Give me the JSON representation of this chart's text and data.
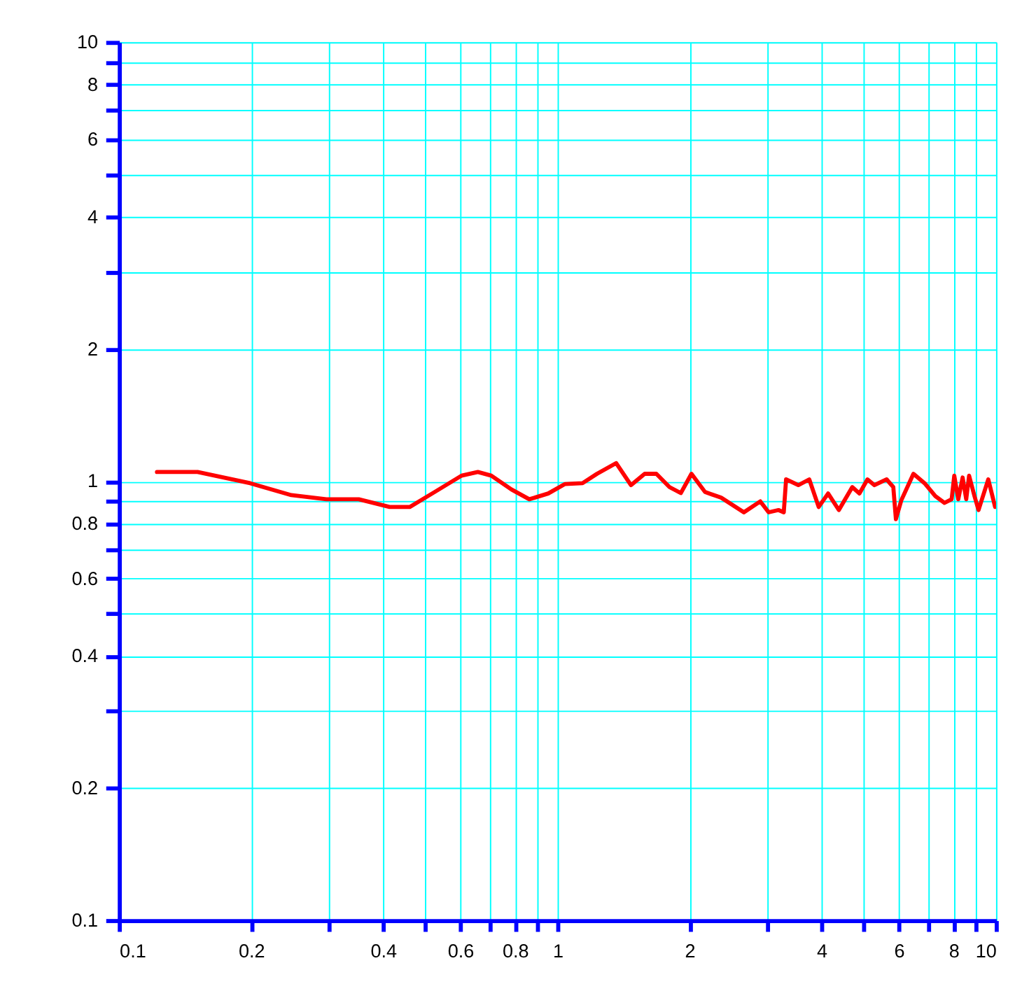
{
  "chart_data": {
    "type": "line",
    "log": "xy",
    "grid": true,
    "line_style": "solid",
    "marker": "none",
    "xlim": [
      0.1,
      10
    ],
    "ylim": [
      0.1,
      10
    ],
    "xticks": [
      0.1,
      0.2,
      {
        "value": 0.3,
        "label": null
      },
      0.4,
      {
        "value": 0.5,
        "label": null
      },
      0.6,
      {
        "value": 0.7,
        "label": null
      },
      0.8,
      {
        "value": 0.9,
        "label": null
      },
      1,
      2,
      {
        "value": 3,
        "label": null
      },
      4,
      {
        "value": 5,
        "label": null
      },
      6,
      {
        "value": 7,
        "label": null
      },
      8,
      {
        "value": 9,
        "label": null
      },
      10
    ],
    "yticks": [
      0.1,
      0.2,
      {
        "value": 0.3,
        "label": null
      },
      0.4,
      {
        "value": 0.5,
        "label": null
      },
      0.6,
      {
        "value": 0.7,
        "label": null
      },
      0.8,
      {
        "value": 0.9,
        "label": null
      },
      1,
      2,
      {
        "value": 3,
        "label": null
      },
      4,
      {
        "value": 5,
        "label": null
      },
      6,
      {
        "value": 7,
        "label": null
      },
      8,
      {
        "value": 9,
        "label": null
      },
      10
    ],
    "series": [
      {
        "color": "#ff0000",
        "x": [
          0.122,
          0.151,
          0.199,
          0.247,
          0.297,
          0.352,
          0.414,
          0.46,
          0.524,
          0.604,
          0.658,
          0.706,
          0.785,
          0.862,
          0.952,
          1.04,
          1.14,
          1.23,
          1.36,
          1.47,
          1.58,
          1.68,
          1.8,
          1.91,
          2.02,
          2.17,
          2.36,
          2.66,
          2.9,
          3.03,
          3.19,
          3.28,
          3.32,
          3.54,
          3.75,
          3.94,
          4.14,
          4.38,
          4.7,
          4.88,
          5.09,
          5.28,
          5.63,
          5.83,
          5.91,
          6.08,
          6.48,
          6.87,
          7.27,
          7.63,
          7.92,
          8.03,
          8.2,
          8.39,
          8.55,
          8.68,
          8.93,
          9.12,
          9.6,
          9.95
        ],
        "values": [
          1.05,
          1.05,
          0.99,
          0.93,
          0.91,
          0.91,
          0.874,
          0.874,
          0.945,
          1.03,
          1.05,
          1.03,
          0.958,
          0.91,
          0.938,
          0.986,
          0.99,
          1.04,
          1.1,
          0.98,
          1.04,
          1.04,
          0.97,
          0.94,
          1.04,
          0.945,
          0.918,
          0.85,
          0.9,
          0.85,
          0.86,
          0.85,
          1.01,
          0.98,
          1.01,
          0.874,
          0.938,
          0.86,
          0.97,
          0.938,
          1.01,
          0.98,
          1.01,
          0.97,
          0.82,
          0.905,
          1.04,
          0.99,
          0.925,
          0.893,
          0.91,
          1.03,
          0.91,
          1.02,
          0.91,
          1.03,
          0.925,
          0.86,
          1.01,
          0.874
        ]
      }
    ]
  }
}
